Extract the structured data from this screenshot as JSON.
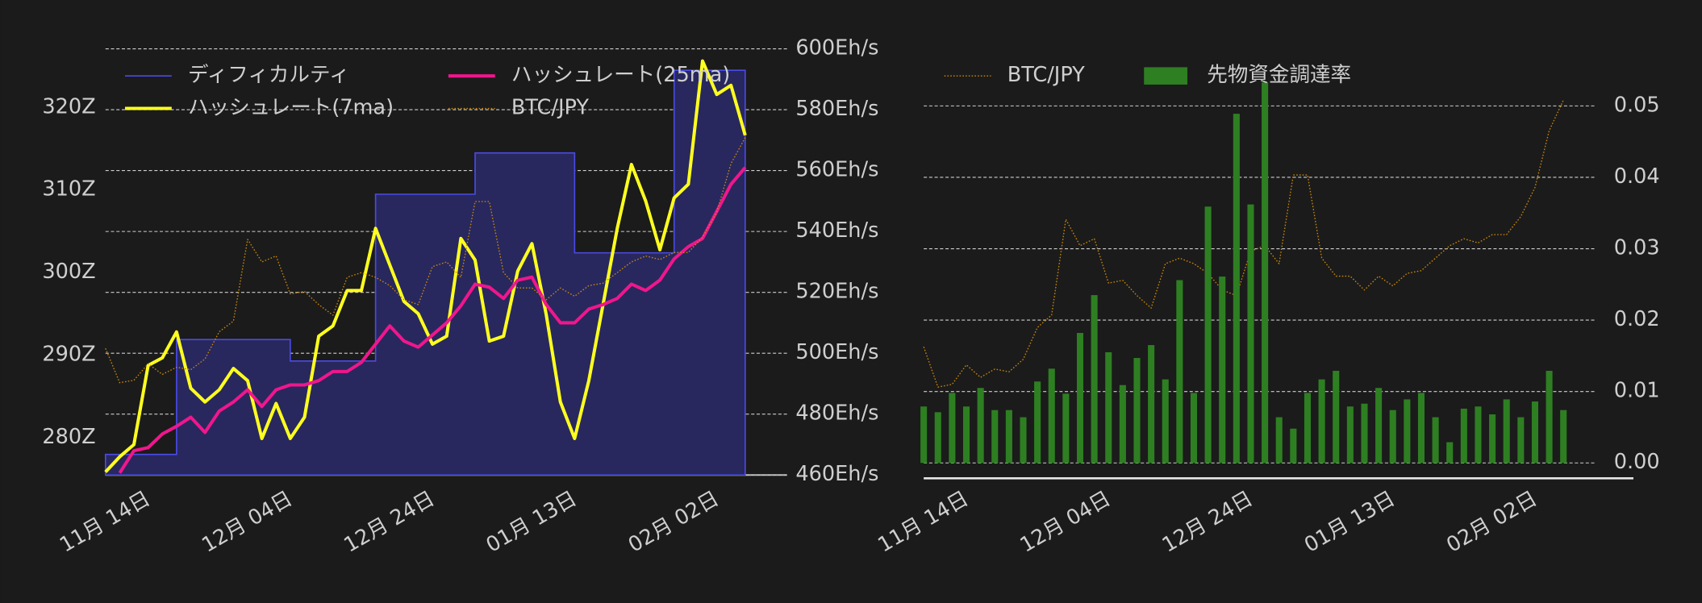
{
  "chart_data": [
    {
      "type": "line",
      "x": [
        "11月 14日",
        null,
        null,
        null,
        null,
        null,
        null,
        null,
        null,
        null,
        "12月 04日",
        null,
        null,
        null,
        null,
        null,
        null,
        null,
        null,
        null,
        "12月 24日",
        null,
        null,
        null,
        null,
        null,
        null,
        null,
        null,
        null,
        "01月 13日",
        null,
        null,
        null,
        null,
        null,
        null,
        null,
        null,
        null,
        "02月 02日",
        null,
        null,
        null,
        null,
        null
      ],
      "ylim": [
        275.5,
        327.1
      ],
      "yticks": [
        {
          "value": 280,
          "label": "280Z"
        },
        {
          "value": 290,
          "label": "290Z"
        },
        {
          "value": 300,
          "label": "300Z"
        },
        {
          "value": 310,
          "label": "310Z"
        },
        {
          "value": 320,
          "label": "320Z"
        }
      ],
      "y2lim": [
        460,
        600
      ],
      "y2ticks": [
        {
          "value": 460,
          "label": "460Eh/s"
        },
        {
          "value": 480,
          "label": "480Eh/s"
        },
        {
          "value": 500,
          "label": "500Eh/s"
        },
        {
          "value": 520,
          "label": "520Eh/s"
        },
        {
          "value": 540,
          "label": "540Eh/s"
        },
        {
          "value": 560,
          "label": "560Eh/s"
        },
        {
          "value": 580,
          "label": "580Eh/s"
        },
        {
          "value": 600,
          "label": "600Eh/s"
        }
      ],
      "y3lim": [
        4600000,
        8200000
      ],
      "grid": "y2",
      "series": [
        {
          "name": "ディフィカルティ",
          "kind": "step",
          "color": "#4b4be6",
          "fill": "#28285e",
          "values": [
            278.0,
            278.0,
            278.0,
            278.0,
            278.0,
            291.9,
            291.9,
            291.9,
            291.9,
            291.9,
            291.9,
            291.9,
            291.9,
            289.3,
            289.3,
            289.3,
            289.3,
            289.3,
            289.3,
            309.5,
            309.5,
            309.5,
            309.5,
            309.5,
            309.5,
            309.5,
            314.5,
            314.5,
            314.5,
            314.5,
            314.5,
            314.5,
            314.5,
            302.4,
            302.4,
            302.4,
            302.4,
            302.4,
            302.4,
            302.4,
            324.5,
            324.5,
            324.5,
            324.5,
            324.5,
            324.5
          ]
        },
        {
          "name": "ハッシュレート(7ma)",
          "kind": "line",
          "axis": "y2",
          "color": "#ffff1f",
          "values": [
            461,
            466,
            470,
            496,
            498.5,
            507,
            488.5,
            484,
            488,
            495,
            491,
            472,
            483.5,
            472,
            479,
            505.6,
            509,
            520.6,
            520.6,
            541,
            529,
            517,
            513,
            503,
            505.6,
            537.7,
            530.6,
            504,
            505.6,
            527,
            536,
            512.8,
            484,
            472,
            491,
            516,
            541,
            562,
            550,
            534,
            551,
            555.5,
            596,
            585,
            588,
            571.6
          ]
        },
        {
          "name": "ハッシュレート(25ma)",
          "kind": "line",
          "axis": "y2",
          "color": "#f0168c",
          "values": [
            null,
            460.7,
            468,
            469,
            473.5,
            476,
            479,
            474,
            481,
            484,
            488,
            482.5,
            488,
            489.6,
            489.6,
            491,
            494,
            494,
            497,
            503,
            509,
            504,
            502,
            506,
            510,
            515.6,
            522.7,
            521.7,
            518,
            524,
            525,
            516,
            510,
            510,
            514.5,
            516,
            518,
            522.7,
            520.6,
            524,
            531,
            535,
            537.7,
            546.6,
            555.5,
            561
          ]
        },
        {
          "name": "BTC/JPY",
          "kind": "dotted",
          "axis": "y3",
          "color": "#c8870c",
          "values": [
            5670000,
            5380000,
            5400000,
            5540000,
            5450000,
            5510000,
            5490000,
            5580000,
            5810000,
            5900000,
            6590000,
            6400000,
            6450000,
            6130000,
            6150000,
            6040000,
            5950000,
            6270000,
            6310000,
            6270000,
            6200000,
            6080000,
            6040000,
            6360000,
            6400000,
            6270000,
            6910000,
            6910000,
            6310000,
            6180000,
            6180000,
            6080000,
            6180000,
            6110000,
            6200000,
            6220000,
            6310000,
            6400000,
            6450000,
            6420000,
            6480000,
            6480000,
            6610000,
            6820000,
            7230000,
            7450000
          ]
        }
      ]
    },
    {
      "type": "bar",
      "x": [
        "11月 14日",
        null,
        null,
        null,
        null,
        null,
        null,
        null,
        null,
        null,
        "12月 04日",
        null,
        null,
        null,
        null,
        null,
        null,
        null,
        null,
        null,
        "12月 24日",
        null,
        null,
        null,
        null,
        null,
        null,
        null,
        null,
        null,
        "01月 13日",
        null,
        null,
        null,
        null,
        null,
        null,
        null,
        null,
        null,
        "02月 02日",
        null,
        null,
        null,
        null,
        null
      ],
      "ylim": [
        -0.002,
        0.058
      ],
      "yticks": [
        {
          "value": 0,
          "label": "0.00"
        },
        0.01,
        0.02,
        0.03,
        0.04,
        0.05
      ],
      "y3lim": [
        4730000,
        7820000
      ],
      "grid": "y",
      "series": [
        {
          "name": "BTC/JPY",
          "kind": "dotted",
          "axis": "y3",
          "color": "#c8870c",
          "values": [
            5670000,
            5380000,
            5400000,
            5540000,
            5450000,
            5510000,
            5490000,
            5580000,
            5810000,
            5900000,
            6590000,
            6400000,
            6450000,
            6130000,
            6150000,
            6040000,
            5950000,
            6270000,
            6310000,
            6270000,
            6200000,
            6080000,
            6040000,
            6360000,
            6400000,
            6270000,
            6910000,
            6910000,
            6310000,
            6180000,
            6180000,
            6080000,
            6180000,
            6110000,
            6200000,
            6220000,
            6310000,
            6400000,
            6450000,
            6420000,
            6480000,
            6480000,
            6610000,
            6820000,
            7230000,
            7450000
          ]
        },
        {
          "name": "先物資金調達率",
          "kind": "bar",
          "color": "#2e7f22",
          "values": [
            0.0079,
            0.0071,
            0.0098,
            0.0079,
            0.0105,
            0.0074,
            0.0074,
            0.0064,
            0.0114,
            0.0132,
            0.0097,
            0.0182,
            0.0235,
            0.0155,
            0.0109,
            0.0147,
            0.0165,
            0.0117,
            0.0256,
            0.0098,
            0.0359,
            0.0261,
            0.0489,
            0.0362,
            0.0533,
            0.0064,
            0.0048,
            0.0098,
            0.0117,
            0.0129,
            0.0079,
            0.0083,
            0.0105,
            0.0074,
            0.0089,
            0.0098,
            0.0064,
            0.0029,
            0.0076,
            0.0079,
            0.0068,
            0.0089,
            0.0064,
            0.0086,
            0.0129,
            0.0074
          ]
        }
      ]
    }
  ]
}
